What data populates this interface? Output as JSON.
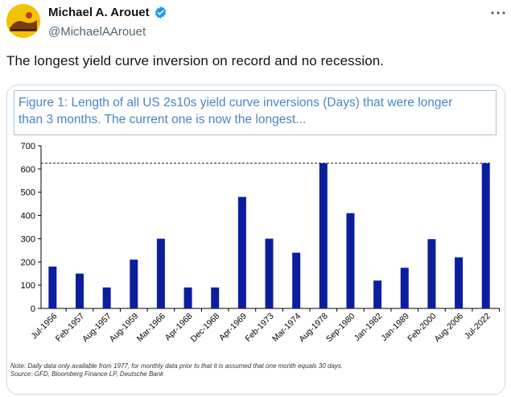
{
  "tweet": {
    "display_name": "Michael A. Arouet",
    "handle": "@MichaelAArouet",
    "text": "The longest yield curve inversion on record and no recession.",
    "verified_icon": "verified-badge-icon",
    "more_icon": "more-options-icon"
  },
  "figure": {
    "title_line1": "Figure 1: Length of all US 2s10s yield curve inversions (Days) that were longer",
    "title_line2": "than 3 months. The current one is now the longest...",
    "note_line1": "Note: Daily data only available from 1977, for monthly data prior to that it is assumed that one month equals 30 days.",
    "note_line2": "Source: GFD, Bloomberg Finance LP, Deutsche Bank"
  },
  "chart_data": {
    "type": "bar",
    "categories": [
      "Jul-1956",
      "Feb-1957",
      "Aug-1957",
      "Aug-1959",
      "Mar-1966",
      "Apr-1968",
      "Dec-1968",
      "Apr-1969",
      "Feb-1973",
      "Mar-1974",
      "Aug-1978",
      "Sep-1980",
      "Jan-1982",
      "Jan-1989",
      "Feb-2000",
      "Aug-2006",
      "Jul-2022"
    ],
    "values": [
      180,
      150,
      90,
      210,
      300,
      90,
      90,
      480,
      300,
      240,
      625,
      410,
      120,
      175,
      298,
      220,
      625
    ],
    "ylim": [
      0,
      700
    ],
    "yticks": [
      0,
      100,
      200,
      300,
      400,
      500,
      600,
      700
    ],
    "reference_line": 625,
    "bar_color": "#0b1f9e",
    "grid": false
  }
}
